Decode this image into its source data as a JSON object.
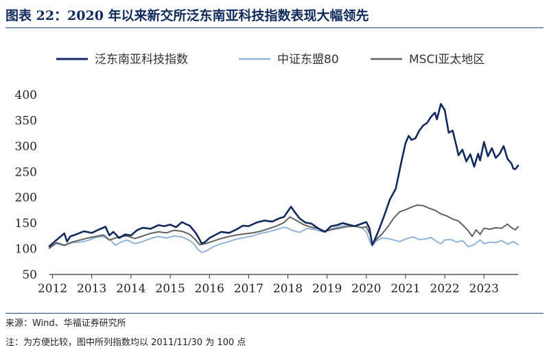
{
  "header": {
    "title": "图表 22：2020 年以来新交所泛东南亚科技指数表现大幅领先"
  },
  "footer": {
    "source": "来源：Wind、华福证券研究所",
    "note": "注：为方便比较，图中所列指数均以 2011/11/30 为 100 点"
  },
  "colors": {
    "accent": "#1d3f7a"
  },
  "chart_data": {
    "type": "line",
    "title": "",
    "xlabel": "",
    "ylabel": "",
    "ylim": [
      50,
      400
    ],
    "yticks": [
      50,
      100,
      150,
      200,
      250,
      300,
      350,
      400
    ],
    "xlim": [
      2011.92,
      2023.87
    ],
    "xticks": [
      "2012",
      "2013",
      "2014",
      "2015",
      "2016",
      "2017",
      "2018",
      "2019",
      "2020",
      "2021",
      "2022",
      "2023"
    ],
    "grid": false,
    "legend_position": "top",
    "series": [
      {
        "name": "泛东南亚科技指数",
        "color": "#10285c",
        "width": 2.6,
        "x": [
          2011.92,
          2012.1,
          2012.3,
          2012.37,
          2012.45,
          2012.6,
          2012.8,
          2013.0,
          2013.2,
          2013.35,
          2013.45,
          2013.55,
          2013.7,
          2013.85,
          2014.0,
          2014.15,
          2014.3,
          2014.5,
          2014.7,
          2014.85,
          2015.0,
          2015.15,
          2015.3,
          2015.4,
          2015.5,
          2015.65,
          2015.75,
          2015.8,
          2015.9,
          2016.0,
          2016.15,
          2016.3,
          2016.5,
          2016.7,
          2016.85,
          2017.0,
          2017.2,
          2017.4,
          2017.6,
          2017.8,
          2017.9,
          2018.0,
          2018.08,
          2018.15,
          2018.3,
          2018.45,
          2018.6,
          2018.75,
          2018.85,
          2018.95,
          2019.1,
          2019.25,
          2019.4,
          2019.55,
          2019.7,
          2019.85,
          2020.0,
          2020.08,
          2020.15,
          2020.2,
          2020.3,
          2020.45,
          2020.6,
          2020.75,
          2020.9,
          2021.0,
          2021.08,
          2021.15,
          2021.25,
          2021.35,
          2021.45,
          2021.55,
          2021.65,
          2021.75,
          2021.8,
          2021.9,
          2022.0,
          2022.1,
          2022.2,
          2022.3,
          2022.35,
          2022.45,
          2022.55,
          2022.65,
          2022.75,
          2022.85,
          2022.9,
          2023.0,
          2023.1,
          2023.2,
          2023.3,
          2023.4,
          2023.5,
          2023.6,
          2023.7,
          2023.75,
          2023.8,
          2023.87
        ],
        "values": [
          105,
          117,
          130,
          114,
          124,
          128,
          134,
          131,
          138,
          143,
          126,
          133,
          121,
          128,
          126,
          136,
          141,
          139,
          146,
          144,
          147,
          142,
          152,
          148,
          145,
          131,
          118,
          110,
          114,
          121,
          127,
          133,
          131,
          138,
          145,
          144,
          151,
          155,
          153,
          160,
          162,
          173,
          182,
          174,
          159,
          151,
          149,
          141,
          136,
          133,
          144,
          146,
          150,
          147,
          144,
          148,
          152,
          140,
          108,
          115,
          133,
          163,
          196,
          217,
          272,
          306,
          320,
          312,
          315,
          330,
          340,
          345,
          357,
          365,
          352,
          382,
          370,
          326,
          330,
          299,
          282,
          293,
          270,
          284,
          260,
          285,
          272,
          308,
          280,
          296,
          277,
          285,
          300,
          275,
          266,
          256,
          255,
          262
        ]
      },
      {
        "name": "中证东盟80",
        "color": "#8fb3d9",
        "width": 2.0,
        "x": [
          2011.92,
          2012.1,
          2012.3,
          2012.5,
          2012.7,
          2012.9,
          2013.1,
          2013.3,
          2013.5,
          2013.6,
          2013.75,
          2013.9,
          2014.1,
          2014.3,
          2014.5,
          2014.7,
          2014.9,
          2015.1,
          2015.3,
          2015.5,
          2015.6,
          2015.7,
          2015.8,
          2015.9,
          2016.1,
          2016.3,
          2016.5,
          2016.7,
          2016.9,
          2017.1,
          2017.3,
          2017.5,
          2017.7,
          2017.9,
          2018.0,
          2018.1,
          2018.3,
          2018.5,
          2018.7,
          2018.9,
          2019.1,
          2019.3,
          2019.5,
          2019.7,
          2019.9,
          2020.0,
          2020.1,
          2020.15,
          2020.25,
          2020.4,
          2020.55,
          2020.7,
          2020.85,
          2021.0,
          2021.1,
          2021.2,
          2021.35,
          2021.5,
          2021.65,
          2021.8,
          2021.9,
          2022.0,
          2022.15,
          2022.3,
          2022.45,
          2022.6,
          2022.75,
          2022.9,
          2023.0,
          2023.15,
          2023.3,
          2023.45,
          2023.6,
          2023.75,
          2023.87
        ],
        "values": [
          103,
          110,
          106,
          112,
          113,
          116,
          122,
          124,
          115,
          107,
          113,
          117,
          110,
          114,
          120,
          124,
          121,
          125,
          123,
          116,
          110,
          99,
          93,
          95,
          104,
          110,
          114,
          119,
          122,
          125,
          130,
          133,
          137,
          142,
          140,
          136,
          132,
          140,
          137,
          133,
          139,
          143,
          146,
          145,
          140,
          133,
          113,
          105,
          115,
          121,
          120,
          117,
          114,
          119,
          121,
          123,
          118,
          119,
          122,
          114,
          110,
          117,
          118,
          113,
          116,
          104,
          108,
          117,
          110,
          113,
          112,
          116,
          109,
          114,
          108
        ]
      },
      {
        "name": "MSCI亚太地区",
        "color": "#606060",
        "width": 2.0,
        "x": [
          2011.92,
          2012.1,
          2012.3,
          2012.5,
          2012.7,
          2012.9,
          2013.1,
          2013.3,
          2013.45,
          2013.6,
          2013.75,
          2013.9,
          2014.1,
          2014.3,
          2014.5,
          2014.7,
          2014.9,
          2015.1,
          2015.3,
          2015.5,
          2015.65,
          2015.75,
          2015.9,
          2016.1,
          2016.3,
          2016.5,
          2016.7,
          2016.9,
          2017.1,
          2017.3,
          2017.5,
          2017.7,
          2017.9,
          2018.05,
          2018.2,
          2018.4,
          2018.6,
          2018.8,
          2018.95,
          2019.1,
          2019.3,
          2019.5,
          2019.7,
          2019.9,
          2020.0,
          2020.1,
          2020.15,
          2020.25,
          2020.4,
          2020.55,
          2020.7,
          2020.85,
          2021.0,
          2021.15,
          2021.3,
          2021.45,
          2021.6,
          2021.75,
          2021.9,
          2022.05,
          2022.2,
          2022.35,
          2022.5,
          2022.6,
          2022.7,
          2022.8,
          2022.9,
          2023.0,
          2023.15,
          2023.3,
          2023.45,
          2023.6,
          2023.7,
          2023.8,
          2023.87
        ],
        "values": [
          101,
          112,
          107,
          113,
          117,
          121,
          124,
          127,
          117,
          121,
          124,
          125,
          120,
          125,
          130,
          133,
          131,
          136,
          134,
          128,
          117,
          108,
          110,
          115,
          120,
          124,
          127,
          129,
          131,
          134,
          139,
          144,
          151,
          162,
          156,
          147,
          142,
          139,
          134,
          137,
          140,
          143,
          144,
          141,
          143,
          128,
          109,
          118,
          129,
          143,
          160,
          172,
          176,
          181,
          185,
          184,
          179,
          175,
          168,
          164,
          158,
          154,
          143,
          135,
          124,
          137,
          128,
          140,
          138,
          141,
          140,
          148,
          141,
          137,
          143
        ]
      }
    ]
  }
}
